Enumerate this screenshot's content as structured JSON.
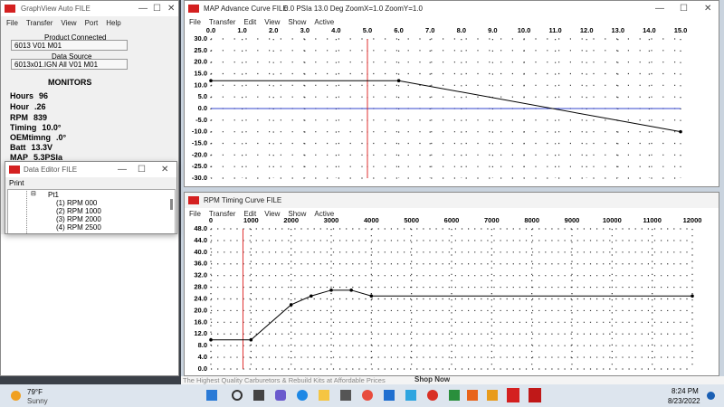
{
  "main_window": {
    "title": "GraphView Auto FILE",
    "menu": [
      "File",
      "Transfer",
      "View",
      "Port",
      "Help"
    ],
    "product_connected": {
      "label": "Product Connected",
      "value": "6013 V01 M01"
    },
    "data_source": {
      "label": "Data Source",
      "value": "6013x01.IGN All V01 M01"
    },
    "monitors": {
      "title": "MONITORS",
      "items": [
        [
          "Hours",
          "96"
        ],
        [
          "Hour",
          ".26"
        ],
        [
          "RPM",
          "839"
        ],
        [
          "Timing",
          "10.0°"
        ],
        [
          "OEMtimng",
          ".0°"
        ],
        [
          "Batt",
          "13.3V"
        ],
        [
          "MAP",
          "5.3PSIa"
        ]
      ]
    }
  },
  "data_editor": {
    "title": "Data Editor FILE",
    "menu": [
      "Print"
    ],
    "tree": {
      "root": "Pt1",
      "items": [
        "(1) RPM   000",
        "(2) RPM   1000",
        "(3) RPM   2000",
        "(4) RPM   2500"
      ]
    }
  },
  "map_window": {
    "title": "MAP Advance Curve  FILE",
    "status": "0.0 PSIa   13.0 Deg  ZoomX=1.0  ZoomY=1.0",
    "menu": [
      "File",
      "Transfer",
      "Edit",
      "View",
      "Show",
      "Active"
    ],
    "chart": {
      "type": "line",
      "x": [
        0,
        6,
        15
      ],
      "values": [
        12,
        12,
        -10
      ],
      "color": "#000000",
      "xlim": [
        0,
        15
      ],
      "ylim": [
        -30,
        30
      ],
      "cursor_x": 5,
      "cursor_color": "#e03030",
      "zero_line_color": "#3344cc",
      "xticks": [
        {
          "value": 0,
          "label": "0.0"
        },
        {
          "value": 1,
          "label": "1.0"
        },
        {
          "value": 2,
          "label": "2.0"
        },
        {
          "value": 3,
          "label": "3.0"
        },
        {
          "value": 4,
          "label": "4.0"
        },
        {
          "value": 5,
          "label": "5.0"
        },
        {
          "value": 6,
          "label": "6.0"
        },
        {
          "value": 7,
          "label": "7.0"
        },
        {
          "value": 8,
          "label": "8.0"
        },
        {
          "value": 9,
          "label": "9.0"
        },
        {
          "value": 10,
          "label": "10.0"
        },
        {
          "value": 11,
          "label": "11.0"
        },
        {
          "value": 12,
          "label": "12.0"
        },
        {
          "value": 13,
          "label": "13.0"
        },
        {
          "value": 14,
          "label": "14.0"
        },
        {
          "value": 15,
          "label": "15.0"
        }
      ],
      "yticks": [
        {
          "value": -30,
          "label": "-30.0"
        },
        {
          "value": -25,
          "label": "-25.0"
        },
        {
          "value": -20,
          "label": "-20.0"
        },
        {
          "value": -15,
          "label": "-15.0"
        },
        {
          "value": -10,
          "label": "-10.0"
        },
        {
          "value": -5,
          "label": "-5.0"
        },
        {
          "value": 0,
          "label": "0.0"
        },
        {
          "value": 5,
          "label": "5.0"
        },
        {
          "value": 10,
          "label": "10.0"
        },
        {
          "value": 15,
          "label": "15.0"
        },
        {
          "value": 20,
          "label": "20.0"
        },
        {
          "value": 25,
          "label": "25.0"
        },
        {
          "value": 30,
          "label": "30.0"
        }
      ]
    }
  },
  "rpm_window": {
    "title": "RPM Timing Curve  FILE",
    "menu": [
      "File",
      "Transfer",
      "Edit",
      "View",
      "Show",
      "Active"
    ],
    "chart": {
      "type": "line",
      "x": [
        0,
        1000,
        2000,
        2500,
        3000,
        3500,
        4000,
        12000
      ],
      "values": [
        10,
        10,
        22,
        25,
        27,
        27,
        25,
        25
      ],
      "color": "#000000",
      "xlim": [
        0,
        12000
      ],
      "ylim": [
        0,
        48
      ],
      "cursor_x": 800,
      "cursor_color": "#e03030",
      "xticks": [
        0,
        1000,
        2000,
        3000,
        4000,
        5000,
        6000,
        7000,
        8000,
        9000,
        10000,
        11000,
        12000
      ],
      "yticks": [
        {
          "value": 0,
          "label": "0.0"
        },
        {
          "value": 4,
          "label": "4.0"
        },
        {
          "value": 8,
          "label": "8.0"
        },
        {
          "value": 12,
          "label": "12.0"
        },
        {
          "value": 16,
          "label": "16.0"
        },
        {
          "value": 20,
          "label": "20.0"
        },
        {
          "value": 24,
          "label": "24.0"
        },
        {
          "value": 28,
          "label": "28.0"
        },
        {
          "value": 32,
          "label": "32.0"
        },
        {
          "value": 36,
          "label": "36.0"
        },
        {
          "value": 40,
          "label": "40.0"
        },
        {
          "value": 44,
          "label": "44.0"
        },
        {
          "value": 48,
          "label": "48.0"
        }
      ]
    }
  },
  "taskbar": {
    "temperature": "79°F",
    "condition": "Sunny",
    "ad": "The Highest Quality Carburetors & Rebuild Kits at Affordable Prices",
    "ad_button": "Shop Now",
    "time": "8:24 PM",
    "date": "8/23/2022"
  }
}
